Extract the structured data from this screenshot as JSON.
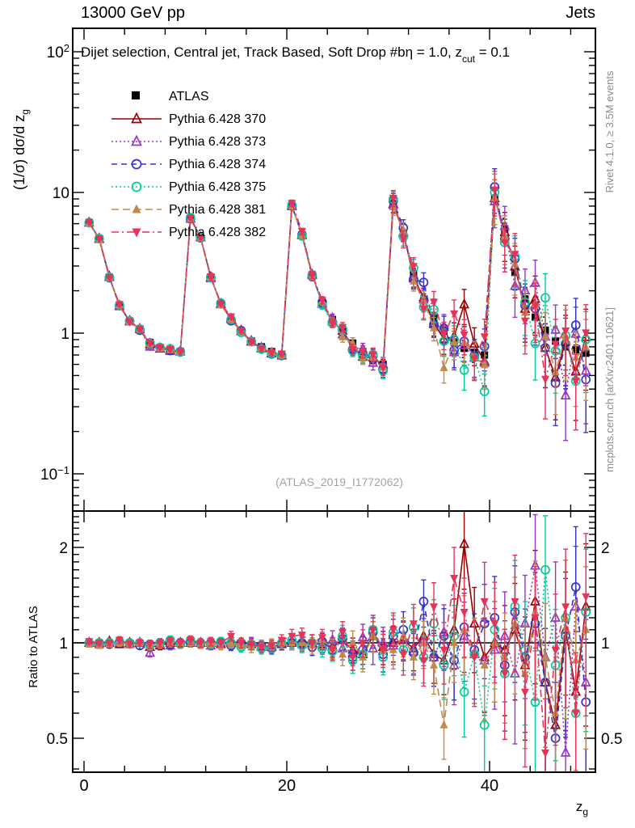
{
  "header": {
    "left": "13000 GeV pp",
    "right": "Jets"
  },
  "title": {
    "part1": "Dijet selection, Central jet, Track Based, Soft Drop #bη = 1.0, z",
    "sub": "cut",
    "part2": " = 0.1"
  },
  "watermark": "(ATLAS_2019_I1772062)",
  "side_notes": {
    "top": "Rivet 4.1.0, ≥ 3.5M events",
    "bottom": "mcplots.cern.ch [arXiv:2401.10621]"
  },
  "axes": {
    "y_main_label": {
      "part1": "(1/σ) dσ/d z",
      "sub": "g"
    },
    "y_ratio_label": "Ratio to ATLAS",
    "x_label": {
      "part1": "z",
      "sub": "g"
    },
    "y_main_ticks": [
      {
        "base": "10",
        "sup": "2"
      },
      {
        "base": "10",
        "sup": ""
      },
      {
        "base": "1",
        "sup": ""
      },
      {
        "base": "10",
        "sup": "−1"
      }
    ],
    "y_ratio_ticks": [
      "2",
      "1",
      "0.5"
    ],
    "x_ticks": [
      "0",
      "20",
      "40"
    ]
  },
  "legend": {
    "entries": [
      {
        "label": "ATLAS"
      },
      {
        "label": "Pythia 6.428 370"
      },
      {
        "label": "Pythia 6.428 373"
      },
      {
        "label": "Pythia 6.428 374"
      },
      {
        "label": "Pythia 6.428 375"
      },
      {
        "label": "Pythia 6.428 381"
      },
      {
        "label": "Pythia 6.428 382"
      }
    ]
  },
  "chart_data": {
    "type": "line",
    "title": "Dijet selection, Central jet, Track Based, Soft Drop #bη = 1.0, z_cut = 0.1",
    "xlabel": "z_g",
    "ylabel": "(1/σ) dσ/d z_g",
    "ylabel_ratio": "Ratio to ATLAS",
    "x_tick_values": [
      0,
      20,
      40
    ],
    "x_minor_step": 4,
    "x_range": [
      -1.12,
      50.44
    ],
    "y_main_range": [
      0.054,
      148
    ],
    "y_main_major_ticks": [
      100,
      10,
      1,
      0.1
    ],
    "y_ratio_range": [
      0.39,
      2.61
    ],
    "y_ratio_major_ticks": [
      0.5,
      1,
      2
    ],
    "grid": false,
    "legend_position": "top-left",
    "x": [
      0.5,
      1.5,
      2.5,
      3.5,
      4.5,
      5.5,
      6.5,
      7.5,
      8.5,
      9.5,
      10.5,
      11.5,
      12.5,
      13.5,
      14.5,
      15.5,
      16.5,
      17.5,
      18.5,
      19.5,
      20.5,
      21.5,
      22.5,
      23.5,
      24.5,
      25.5,
      26.5,
      27.5,
      28.5,
      29.5,
      30.5,
      31.5,
      32.5,
      33.5,
      34.5,
      35.5,
      36.5,
      37.5,
      38.5,
      39.5,
      40.5,
      41.5,
      42.5,
      43.5,
      44.5,
      45.5,
      46.5,
      47.5,
      48.5,
      49.5
    ],
    "atlas": {
      "label": "ATLAS",
      "color": "#000000",
      "marker": "square-filled",
      "values": [
        6.1,
        4.7,
        2.5,
        1.57,
        1.22,
        1.07,
        0.86,
        0.79,
        0.76,
        0.74,
        6.5,
        4.8,
        2.5,
        1.62,
        1.25,
        1.04,
        0.88,
        0.8,
        0.74,
        0.7,
        8.0,
        5.0,
        2.6,
        1.65,
        1.25,
        1.02,
        0.85,
        0.74,
        0.64,
        0.6,
        8.3,
        5.1,
        2.6,
        1.7,
        1.28,
        1.03,
        0.86,
        0.78,
        0.73,
        0.7,
        9.1,
        5.5,
        2.7,
        1.75,
        1.3,
        1.05,
        0.88,
        0.8,
        0.76,
        0.72
      ],
      "rel_err_scale": 0.5
    },
    "mc_rel_err": [
      0.02,
      0.02,
      0.02,
      0.025,
      0.025,
      0.025,
      0.03,
      0.03,
      0.03,
      0.03,
      0.03,
      0.03,
      0.03,
      0.03,
      0.035,
      0.035,
      0.04,
      0.04,
      0.04,
      0.04,
      0.05,
      0.05,
      0.06,
      0.06,
      0.07,
      0.08,
      0.09,
      0.1,
      0.11,
      0.12,
      0.13,
      0.14,
      0.15,
      0.17,
      0.19,
      0.22,
      0.25,
      0.28,
      0.3,
      0.33,
      0.35,
      0.38,
      0.4,
      0.42,
      0.45,
      0.48,
      0.5,
      0.52,
      0.55,
      0.58
    ],
    "series": [
      {
        "name": "Pythia 6.428 370",
        "color": "#990000",
        "line": "solid",
        "marker": "triangle-up-open",
        "ratio": [
          1.0,
          1.0,
          1.01,
          0.99,
          1.0,
          1.0,
          0.97,
          0.98,
          1.0,
          1.0,
          1.0,
          1.0,
          1.0,
          0.99,
          1.01,
          1.0,
          0.99,
          0.98,
          0.97,
          0.99,
          1.0,
          1.01,
          1.0,
          0.99,
          0.97,
          1.02,
          0.95,
          0.92,
          1.05,
          0.97,
          1.0,
          1.02,
          0.96,
          1.05,
          0.92,
          0.88,
          1.1,
          2.05,
          1.15,
          0.9,
          1.0,
          0.95,
          1.1,
          0.85,
          1.35,
          0.75,
          0.55,
          1.1,
          0.7,
          1.3
        ]
      },
      {
        "name": "Pythia 6.428 373",
        "color": "#9933CC",
        "line": "dotted",
        "marker": "triangle-up-open",
        "ratio": [
          1.0,
          0.99,
          1.0,
          1.0,
          0.99,
          1.0,
          0.93,
          0.99,
          0.98,
          1.0,
          1.0,
          1.0,
          0.98,
          1.0,
          1.01,
          0.99,
          1.0,
          0.97,
          0.98,
          1.0,
          1.01,
          0.99,
          1.0,
          0.98,
          1.02,
          0.96,
          0.93,
          1.04,
          0.96,
          1.0,
          0.98,
          1.03,
          0.94,
          1.02,
          0.9,
          1.08,
          0.85,
          1.05,
          0.92,
          0.88,
          0.95,
          1.05,
          0.8,
          1.15,
          1.75,
          0.9,
          1.2,
          0.45,
          1.3,
          0.75
        ]
      },
      {
        "name": "Pythia 6.428 374",
        "color": "#3333CC",
        "line": "dashed",
        "marker": "circle-open",
        "ratio": [
          1.0,
          1.0,
          0.99,
          1.0,
          1.0,
          0.98,
          0.99,
          1.0,
          0.99,
          1.0,
          1.0,
          0.99,
          1.0,
          1.0,
          0.98,
          1.0,
          0.99,
          0.98,
          0.96,
          0.99,
          1.0,
          1.0,
          0.97,
          1.01,
          0.95,
          1.03,
          0.9,
          0.95,
          1.08,
          0.92,
          1.05,
          1.1,
          0.93,
          1.35,
          0.9,
          1.05,
          0.88,
          1.12,
          0.95,
          1.15,
          1.2,
          0.85,
          1.25,
          0.9,
          1.15,
          0.75,
          0.5,
          1.05,
          1.5,
          0.65
        ]
      },
      {
        "name": "Pythia 6.428 375",
        "color": "#00CC99",
        "line": "dotted",
        "marker": "circle-open",
        "ratio": [
          1.0,
          1.0,
          1.0,
          1.01,
          1.0,
          1.0,
          0.98,
          1.0,
          1.02,
          0.99,
          1.02,
          1.0,
          0.99,
          1.01,
          1.0,
          0.97,
          0.99,
          0.96,
          0.97,
          1.0,
          1.02,
          0.98,
          1.0,
          0.96,
          0.94,
          1.05,
          0.88,
          0.92,
          1.1,
          0.9,
          1.08,
          0.95,
          1.12,
          0.9,
          1.15,
          0.85,
          1.05,
          0.7,
          0.92,
          0.55,
          1.1,
          0.8,
          1.3,
          0.95,
          0.65,
          1.7,
          0.85,
          1.2,
          0.6,
          1.25
        ]
      },
      {
        "name": "Pythia 6.428 381",
        "color": "#C08A4D",
        "line": "longdash",
        "marker": "triangle-up-filled",
        "ratio": [
          0.99,
          0.98,
          0.99,
          1.0,
          0.99,
          1.0,
          0.98,
          0.99,
          1.0,
          1.0,
          1.0,
          0.99,
          1.0,
          0.98,
          1.0,
          0.99,
          0.97,
          0.98,
          0.99,
          1.0,
          1.0,
          1.0,
          0.98,
          1.02,
          0.96,
          0.92,
          1.0,
          0.9,
          1.05,
          0.95,
          0.95,
          1.05,
          0.9,
          1.0,
          0.85,
          0.55,
          1.0,
          1.1,
          0.92,
          0.85,
          1.0,
          0.9,
          1.15,
          0.8,
          1.25,
          0.9,
          0.6,
          1.2,
          0.88,
          1.1
        ]
      },
      {
        "name": "Pythia 6.428 382",
        "color": "#E8325A",
        "line": "dashdot",
        "marker": "triangle-down-filled",
        "ratio": [
          1.01,
          1.0,
          1.0,
          1.02,
          0.99,
          1.0,
          0.99,
          1.0,
          1.01,
          1.0,
          1.02,
          1.0,
          1.01,
          1.0,
          1.05,
          1.0,
          0.99,
          0.97,
          0.98,
          1.02,
          1.05,
          1.06,
          1.0,
          1.04,
          0.95,
          1.08,
          0.9,
          1.0,
          1.1,
          0.95,
          1.1,
          0.92,
          1.15,
          0.88,
          1.3,
          0.95,
          1.6,
          1.25,
          0.9,
          1.35,
          1.15,
          0.8,
          1.35,
          0.7,
          1.2,
          0.45,
          0.95,
          1.3,
          0.6,
          1.4
        ]
      }
    ]
  }
}
